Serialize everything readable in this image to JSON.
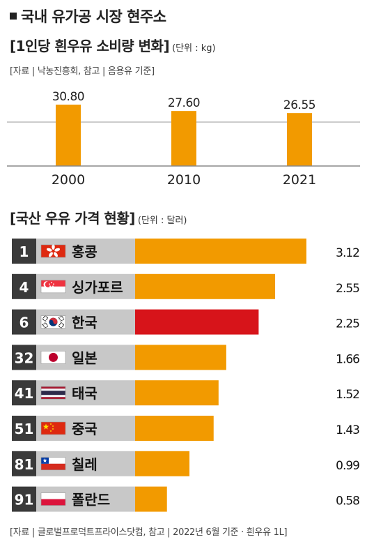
{
  "headline": "국내 유가공 시장 현주소",
  "chart1": {
    "title": "[1인당 흰우유 소비량 변화]",
    "unit": "(단위 : kg)",
    "source": "[자료 | 낙농진흥회, 참고 | 음용유 기준]"
  },
  "chart2": {
    "title": "[국산 우유 가격 현황]",
    "unit": "(단위 : 달러)",
    "source": "[자료 | 글로벌프로덕트프라이스닷컴, 참고 | 2022년 6월 기준 · 흰우유 1L]"
  },
  "colors": {
    "bar": "#F29A00",
    "highlight": "#D7141A",
    "rank_bg": "#3a3a3a",
    "label_bg": "#c8c8c8",
    "axis": "#8a8a8a"
  },
  "chart_data": [
    {
      "type": "bar",
      "categories": [
        "2000",
        "2010",
        "2021"
      ],
      "values": [
        30.8,
        27.6,
        26.55
      ],
      "value_labels": [
        "30.80",
        "27.60",
        "26.55"
      ],
      "grid": true,
      "ylim": [
        0,
        33
      ]
    },
    {
      "type": "bar",
      "orientation": "horizontal",
      "categories": [
        "홍콩",
        "싱가포르",
        "한국",
        "일본",
        "태국",
        "중국",
        "칠레",
        "폴란드"
      ],
      "ranks": [
        "1",
        "4",
        "6",
        "32",
        "41",
        "51",
        "81",
        "91"
      ],
      "flags": [
        "hong-kong-flag",
        "singapore-flag",
        "south-korea-flag",
        "japan-flag",
        "thailand-flag",
        "china-flag",
        "chile-flag",
        "poland-flag"
      ],
      "values": [
        3.12,
        2.55,
        2.25,
        1.66,
        1.52,
        1.43,
        0.99,
        0.58
      ],
      "value_labels": [
        "3.12",
        "2.55",
        "2.25",
        "1.66",
        "1.52",
        "1.43",
        "0.99",
        "0.58"
      ],
      "highlight": "한국"
    }
  ]
}
